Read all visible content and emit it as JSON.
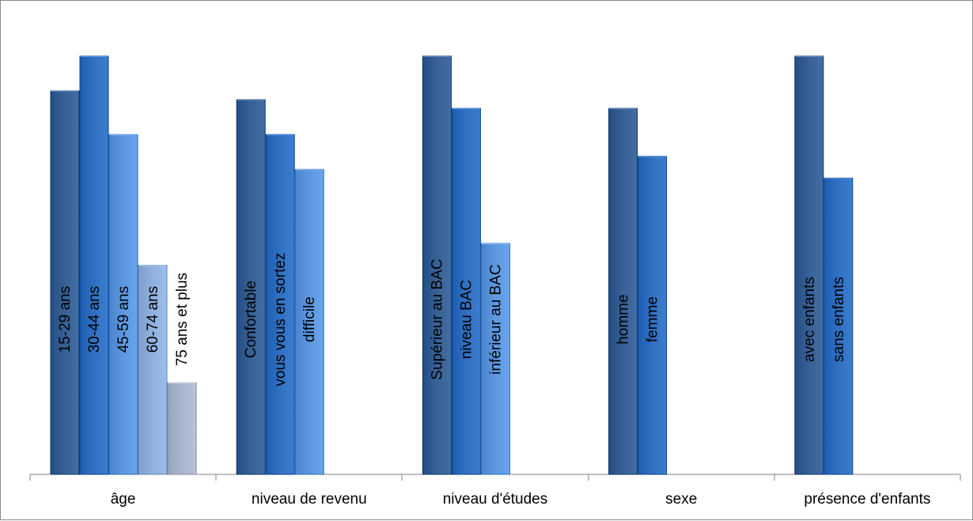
{
  "chart_data": {
    "type": "bar",
    "categories": [
      "âge",
      "niveau de revenu",
      "niveau d'études",
      "sexe",
      "présence d'enfants"
    ],
    "groups": [
      {
        "category": "âge",
        "bars": [
          {
            "label": "15-29 ans",
            "value": 88,
            "color": "#366095"
          },
          {
            "label": "30-44 ans",
            "value": 96,
            "color": "#2f6fc1"
          },
          {
            "label": "45-59 ans",
            "value": 78,
            "color": "#5c96df"
          },
          {
            "label": "60-74 ans",
            "value": 48,
            "color": "#8fb0dc"
          },
          {
            "label": "75 ans et plus",
            "value": 21,
            "color": "#a9b5cc"
          }
        ]
      },
      {
        "category": "niveau de revenu",
        "bars": [
          {
            "label": "Confortable",
            "value": 86,
            "color": "#366095"
          },
          {
            "label": "vous vous en sortez",
            "value": 78,
            "color": "#2f6fc1"
          },
          {
            "label": "difficile",
            "value": 70,
            "color": "#5c96df"
          }
        ]
      },
      {
        "category": "niveau d'études",
        "bars": [
          {
            "label": "Supérieur au BAC",
            "value": 96,
            "color": "#366095"
          },
          {
            "label": "niveau BAC",
            "value": 84,
            "color": "#2f6fc1"
          },
          {
            "label": "inférieur au BAC",
            "value": 53,
            "color": "#5c96df"
          }
        ]
      },
      {
        "category": "sexe",
        "bars": [
          {
            "label": "homme",
            "value": 84,
            "color": "#366095"
          },
          {
            "label": "femme",
            "value": 73,
            "color": "#2f6fc1"
          }
        ]
      },
      {
        "category": "présence d'enfants",
        "bars": [
          {
            "label": "avec enfants",
            "value": 96,
            "color": "#366095"
          },
          {
            "label": "sans enfants",
            "value": 68,
            "color": "#2f6fc1"
          }
        ]
      }
    ],
    "title": "",
    "xlabel": "",
    "ylabel": "",
    "ylim": [
      0,
      100
    ],
    "grid": false,
    "legend": "none",
    "bar_labels": "vertical-inside",
    "axis_color": "#808080"
  }
}
